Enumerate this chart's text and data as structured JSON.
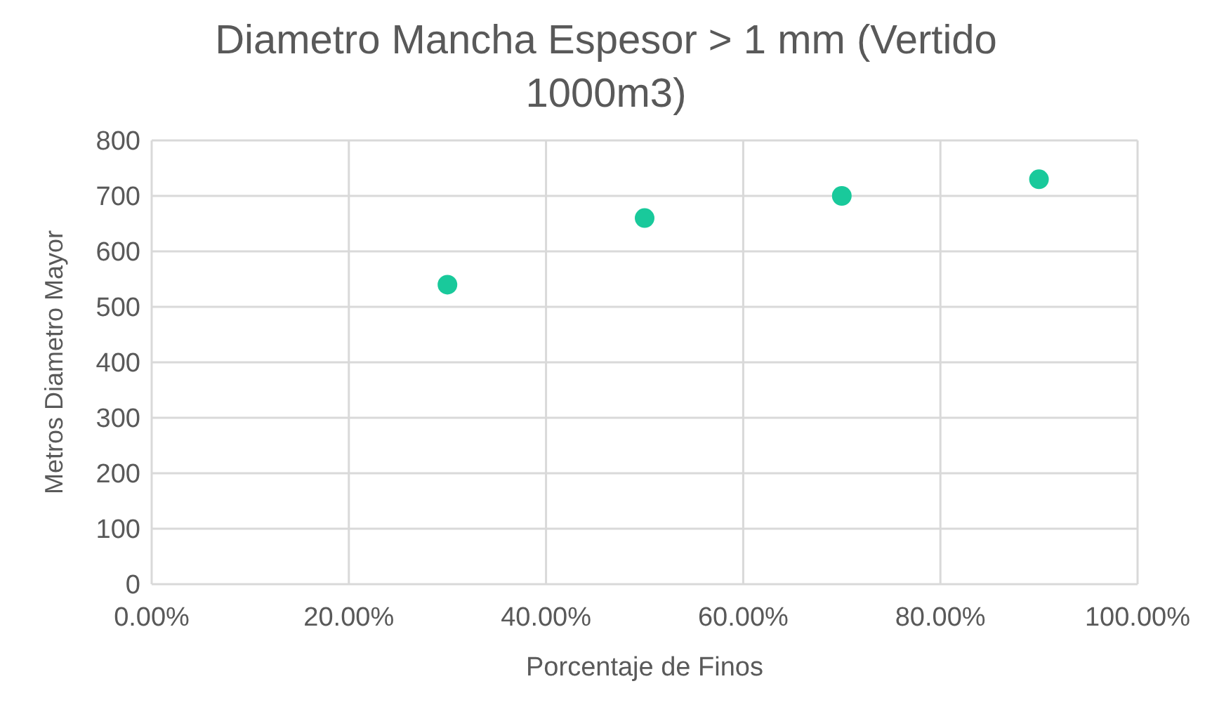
{
  "chart_data": {
    "type": "scatter",
    "title": "Diametro Mancha Espesor > 1 mm (Vertido 1000m3)",
    "xlabel": "Porcentaje de Finos",
    "ylabel": "Metros Diametro Mayor",
    "x": [
      30,
      50,
      70,
      90
    ],
    "series": [
      {
        "color": "#19c99b",
        "values": [
          540,
          660,
          700,
          730
        ]
      }
    ],
    "xlim": [
      0,
      100
    ],
    "xticks": [
      {
        "value": 0,
        "label": "0.00%"
      },
      {
        "value": 20,
        "label": "20.00%"
      },
      {
        "value": 40,
        "label": "40.00%"
      },
      {
        "value": 60,
        "label": "60.00%"
      },
      {
        "value": 80,
        "label": "80.00%"
      },
      {
        "value": 100,
        "label": "100.00%"
      }
    ],
    "ylim": [
      0,
      800
    ],
    "yticks": [
      0,
      100,
      200,
      300,
      400,
      500,
      600,
      700,
      800
    ],
    "grid": true,
    "marker": "circle"
  }
}
